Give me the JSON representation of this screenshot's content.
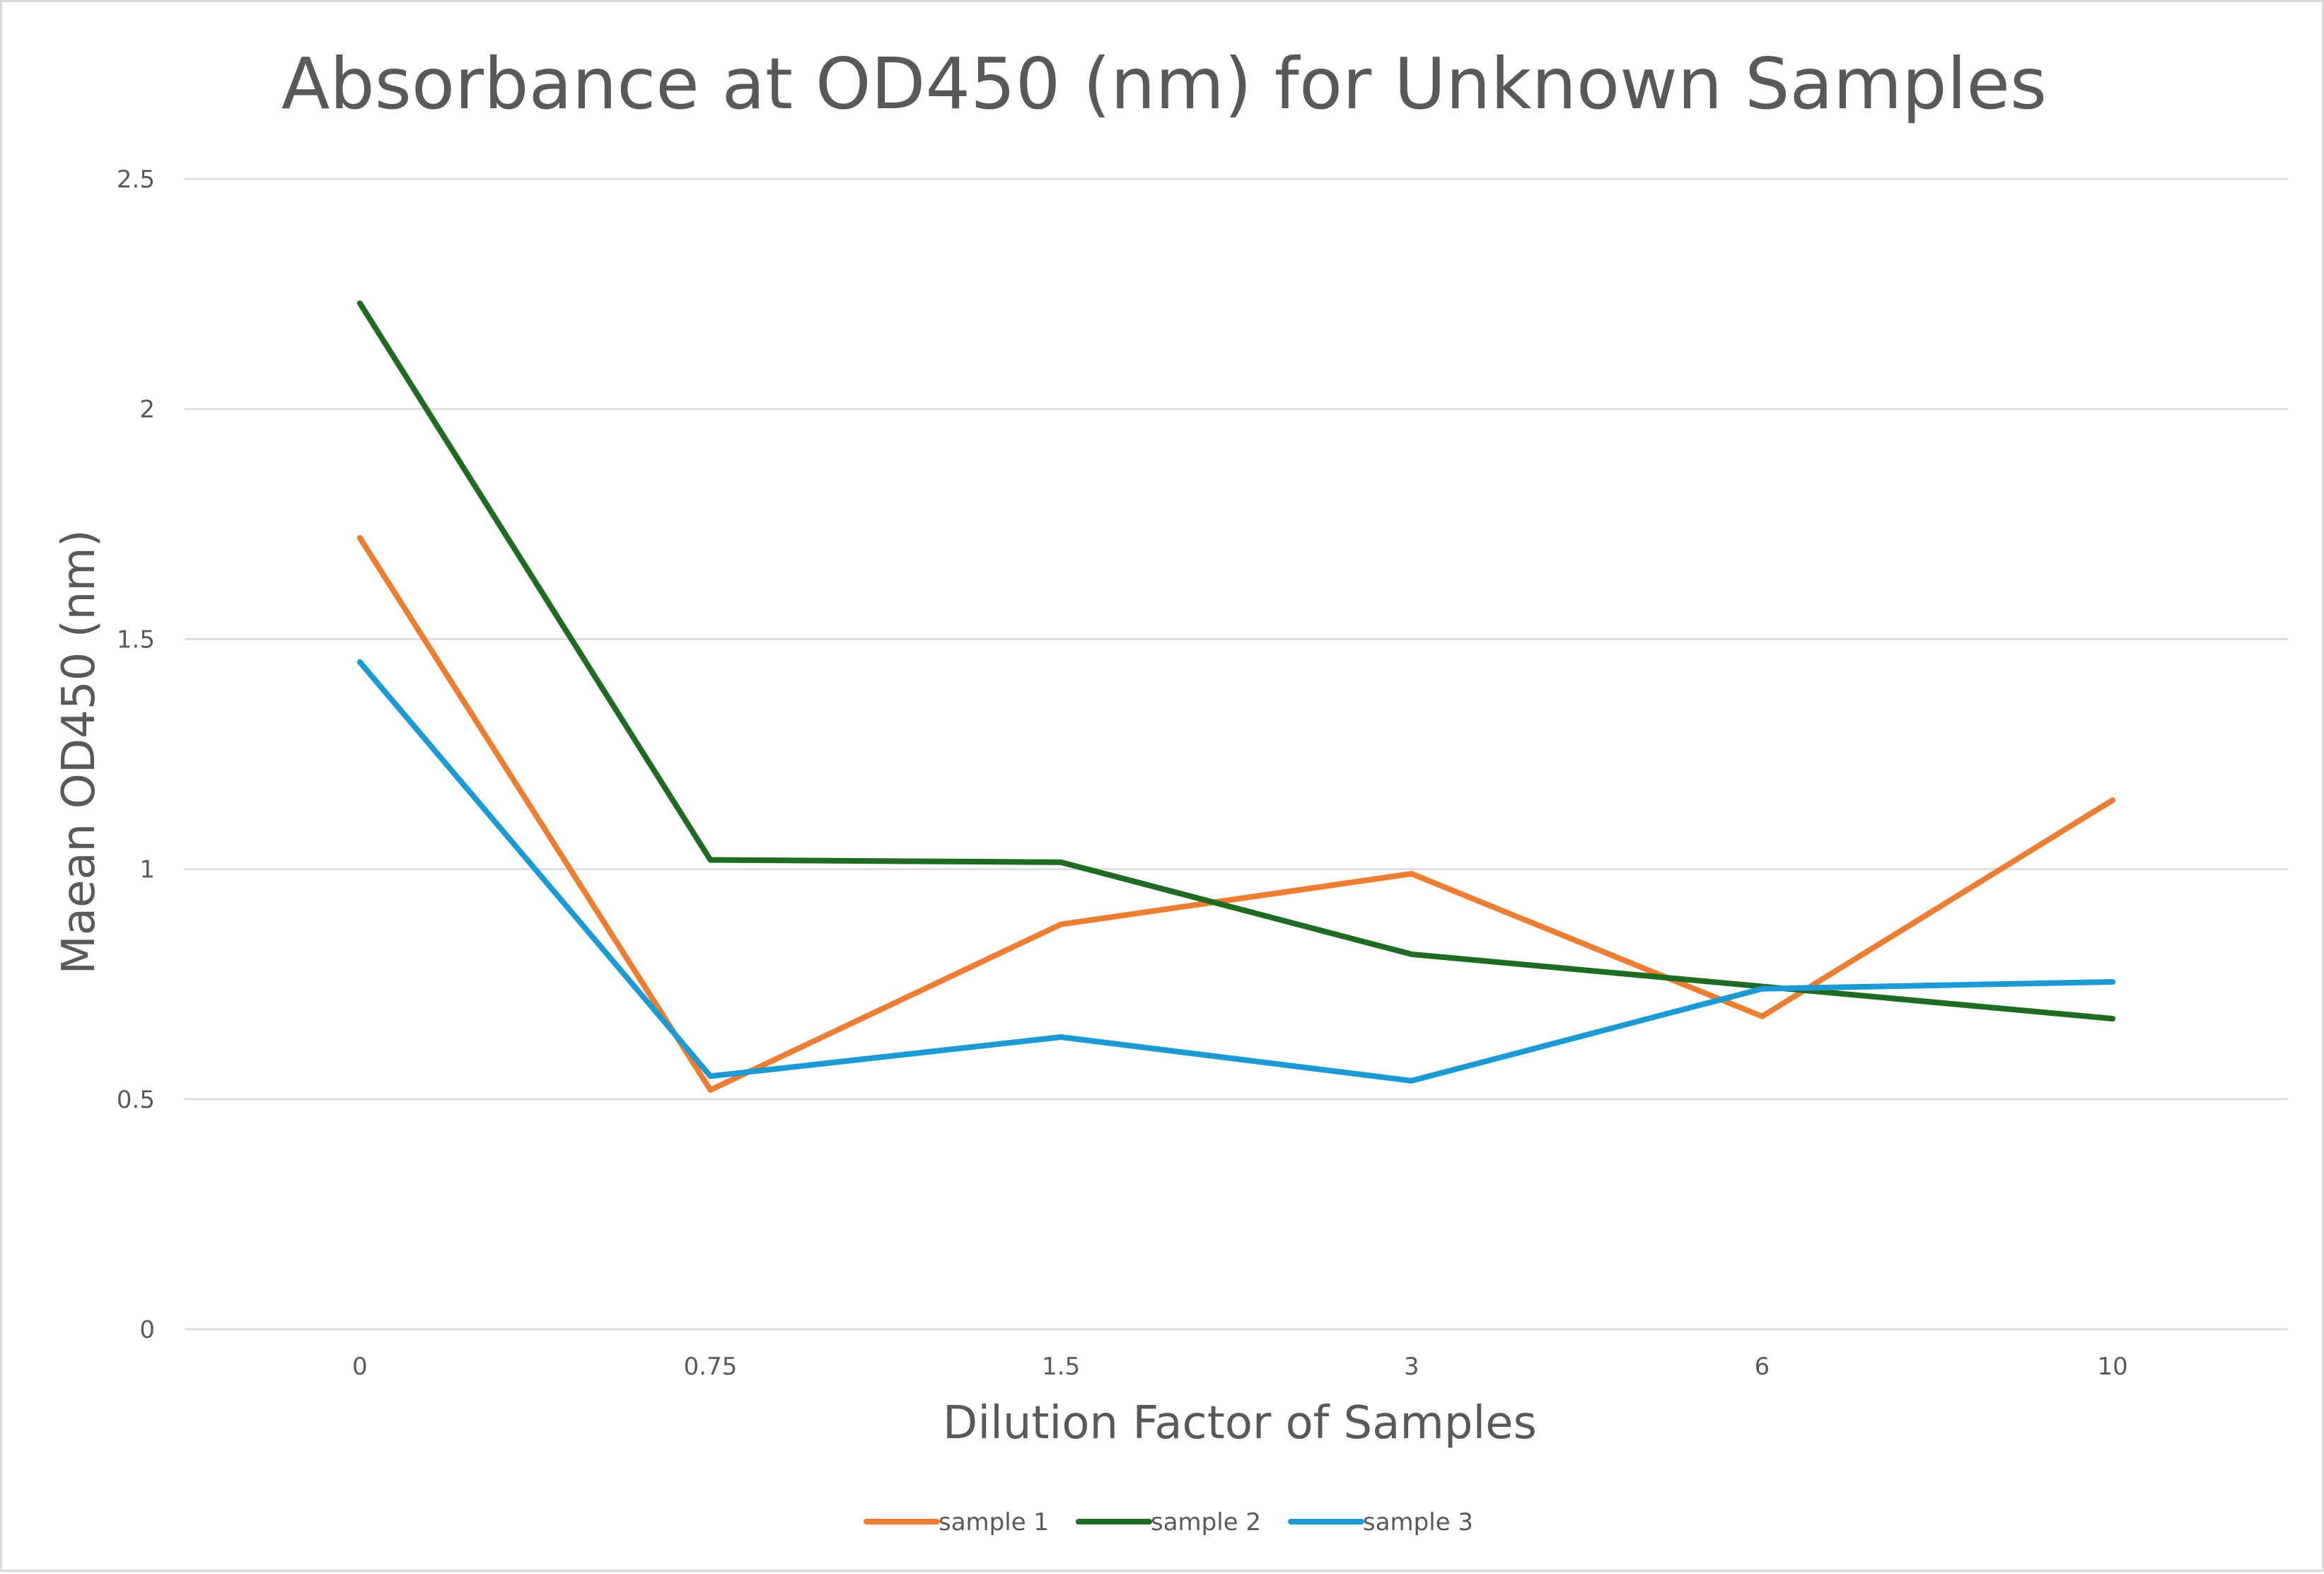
{
  "chart_data": {
    "type": "line",
    "title": "Absorbance at OD450 (nm) for Unknown Samples",
    "xlabel": "Dilution Factor of Samples",
    "ylabel": "Maean OD450 (nm)",
    "categories": [
      "0",
      "0.75",
      "1.5",
      "3",
      "6",
      "10"
    ],
    "ylim": [
      0,
      2.5
    ],
    "yticks": [
      "0",
      "0.5",
      "1",
      "1.5",
      "2",
      "2.5"
    ],
    "grid": true,
    "legend_position": "bottom",
    "series": [
      {
        "name": "sample 1",
        "color": "#ED7D31",
        "values": [
          1.72,
          0.52,
          0.88,
          0.99,
          0.68,
          1.15
        ]
      },
      {
        "name": "sample 2",
        "color": "#1E6B21",
        "values": [
          2.23,
          1.02,
          1.015,
          0.815,
          0.745,
          0.675
        ]
      },
      {
        "name": "sample 3",
        "color": "#1C9AD6",
        "values": [
          1.45,
          0.55,
          0.635,
          0.54,
          0.74,
          0.755
        ]
      }
    ]
  }
}
